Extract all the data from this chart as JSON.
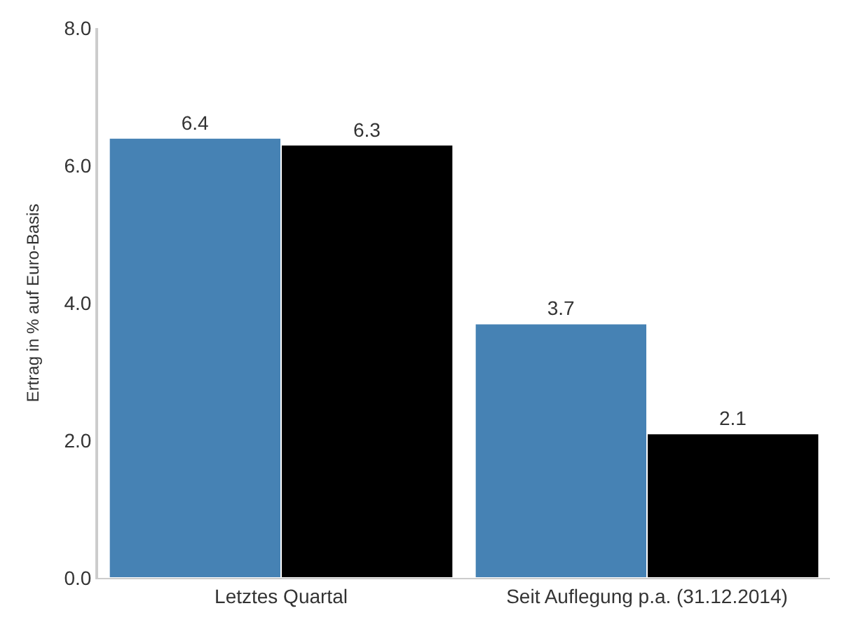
{
  "chart_data": {
    "type": "bar",
    "ylabel": "Ertrag in % auf Euro-Basis",
    "categories": [
      "Letztes Quartal",
      "Seit Auflegung p.a. (31.12.2014)"
    ],
    "series": [
      {
        "color": "#4682b4",
        "values": [
          6.4,
          3.7
        ]
      },
      {
        "color": "#000000",
        "values": [
          6.3,
          2.1
        ]
      }
    ],
    "ylim": [
      0,
      8
    ],
    "yticks": [
      {
        "value": 0,
        "label": "0.0"
      },
      {
        "value": 2,
        "label": "2.0"
      },
      {
        "value": 4,
        "label": "4.0"
      },
      {
        "value": 6,
        "label": "6.0"
      },
      {
        "value": 8,
        "label": "8.0"
      }
    ],
    "data_labels": true,
    "grid": false
  }
}
